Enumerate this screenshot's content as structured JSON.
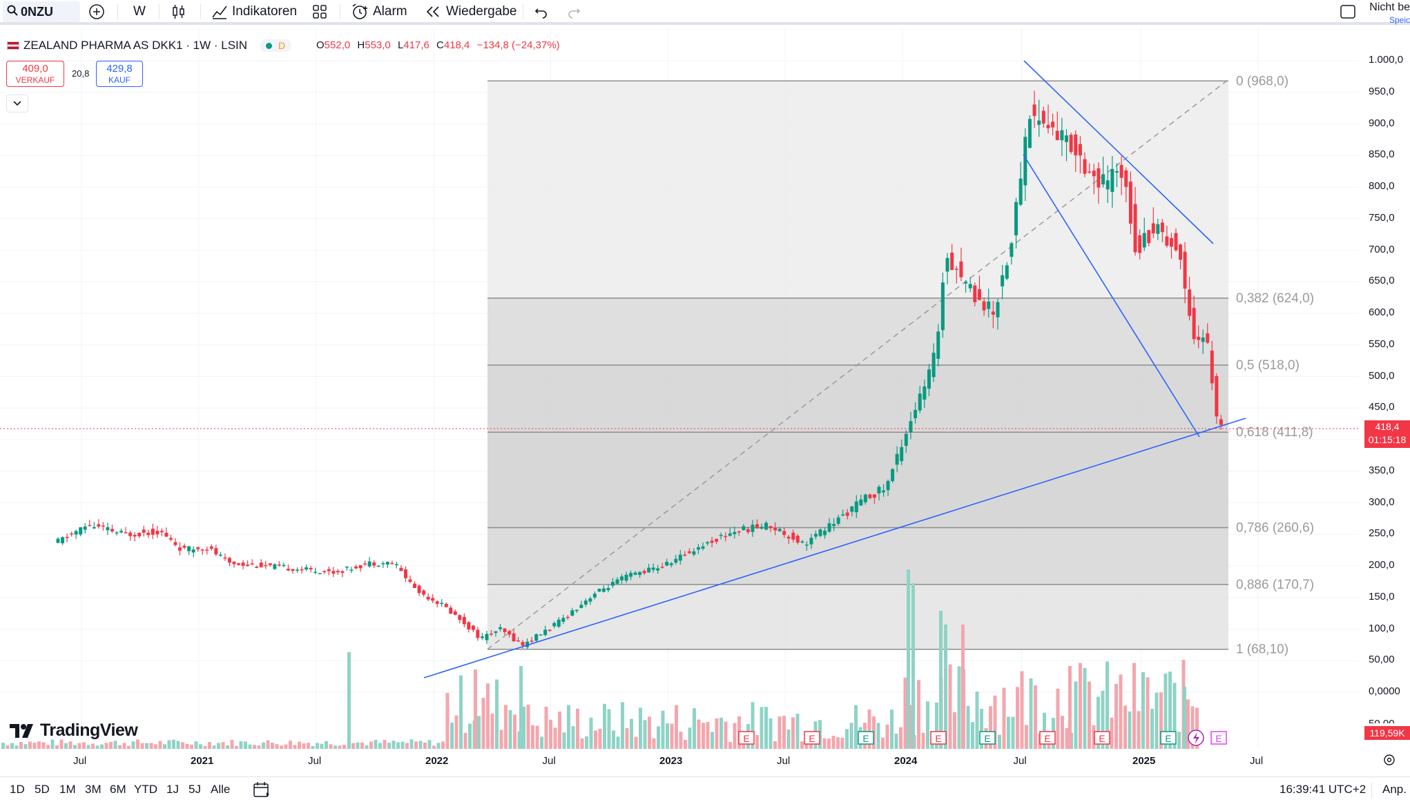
{
  "toolbar": {
    "symbol": "0NZU",
    "interval": "W",
    "indicators": "Indikatoren",
    "alarm": "Alarm",
    "replay": "Wiedergabe",
    "account_line1": "Nicht be",
    "account_line2": "Speic"
  },
  "legend": {
    "title": "ZEALAND PHARMA AS DKK1 · 1W · LSIN",
    "badge": "D",
    "o_label": "O",
    "o": "552,0",
    "h_label": "H",
    "h": "553,0",
    "l_label": "L",
    "l": "417,6",
    "c_label": "C",
    "c": "418,4",
    "change": "−134,8 (−24,37%)"
  },
  "trade": {
    "sell_price": "409,0",
    "sell_label": "VERKAUF",
    "spread": "20,8",
    "buy_price": "429,8",
    "buy_label": "KAUF"
  },
  "price_axis": [
    "1.000,0",
    "950,0",
    "900,0",
    "850,0",
    "800,0",
    "750,0",
    "700,0",
    "650,0",
    "600,0",
    "550,0",
    "500,0",
    "450,0",
    "400,0",
    "350,0",
    "300,0",
    "250,0",
    "200,0",
    "150,0",
    "100,0",
    "50,00",
    "0,0000"
  ],
  "price_partial": "50,00",
  "last_price": "418,4",
  "countdown": "01:15:18",
  "volume_tag": "119,59K",
  "time_axis": [
    "Jul",
    "2021",
    "Jul",
    "2022",
    "Jul",
    "2023",
    "Jul",
    "2024",
    "Jul",
    "2025",
    "Jul"
  ],
  "fib_levels": [
    {
      "ratio": "0",
      "value": "968,0",
      "label": "0 (968,0)"
    },
    {
      "ratio": "0.382",
      "value": "624,0",
      "label": "0,382 (624,0)"
    },
    {
      "ratio": "0.5",
      "value": "518,0",
      "label": "0,5 (518,0)"
    },
    {
      "ratio": "0.618",
      "value": "411,8",
      "label": "0,618 (411,8)"
    },
    {
      "ratio": "0.786",
      "value": "260,6",
      "label": "0,786 (260,6)"
    },
    {
      "ratio": "0.886",
      "value": "170,7",
      "label": "0,886 (170,7)"
    },
    {
      "ratio": "1",
      "value": "68,10",
      "label": "1 (68,10)"
    }
  ],
  "event_marker": "E",
  "timeframes": [
    "1D",
    "5D",
    "1M",
    "3M",
    "6M",
    "YTD",
    "1J",
    "5J",
    "Alle"
  ],
  "clock": "16:39:41 UTC+2",
  "adjust": "Anp.",
  "brand": "TradingView",
  "colors": {
    "up": "#089981",
    "down": "#f23645",
    "trendline": "#2962ff",
    "fib_zone": "#d9d9d9"
  }
}
